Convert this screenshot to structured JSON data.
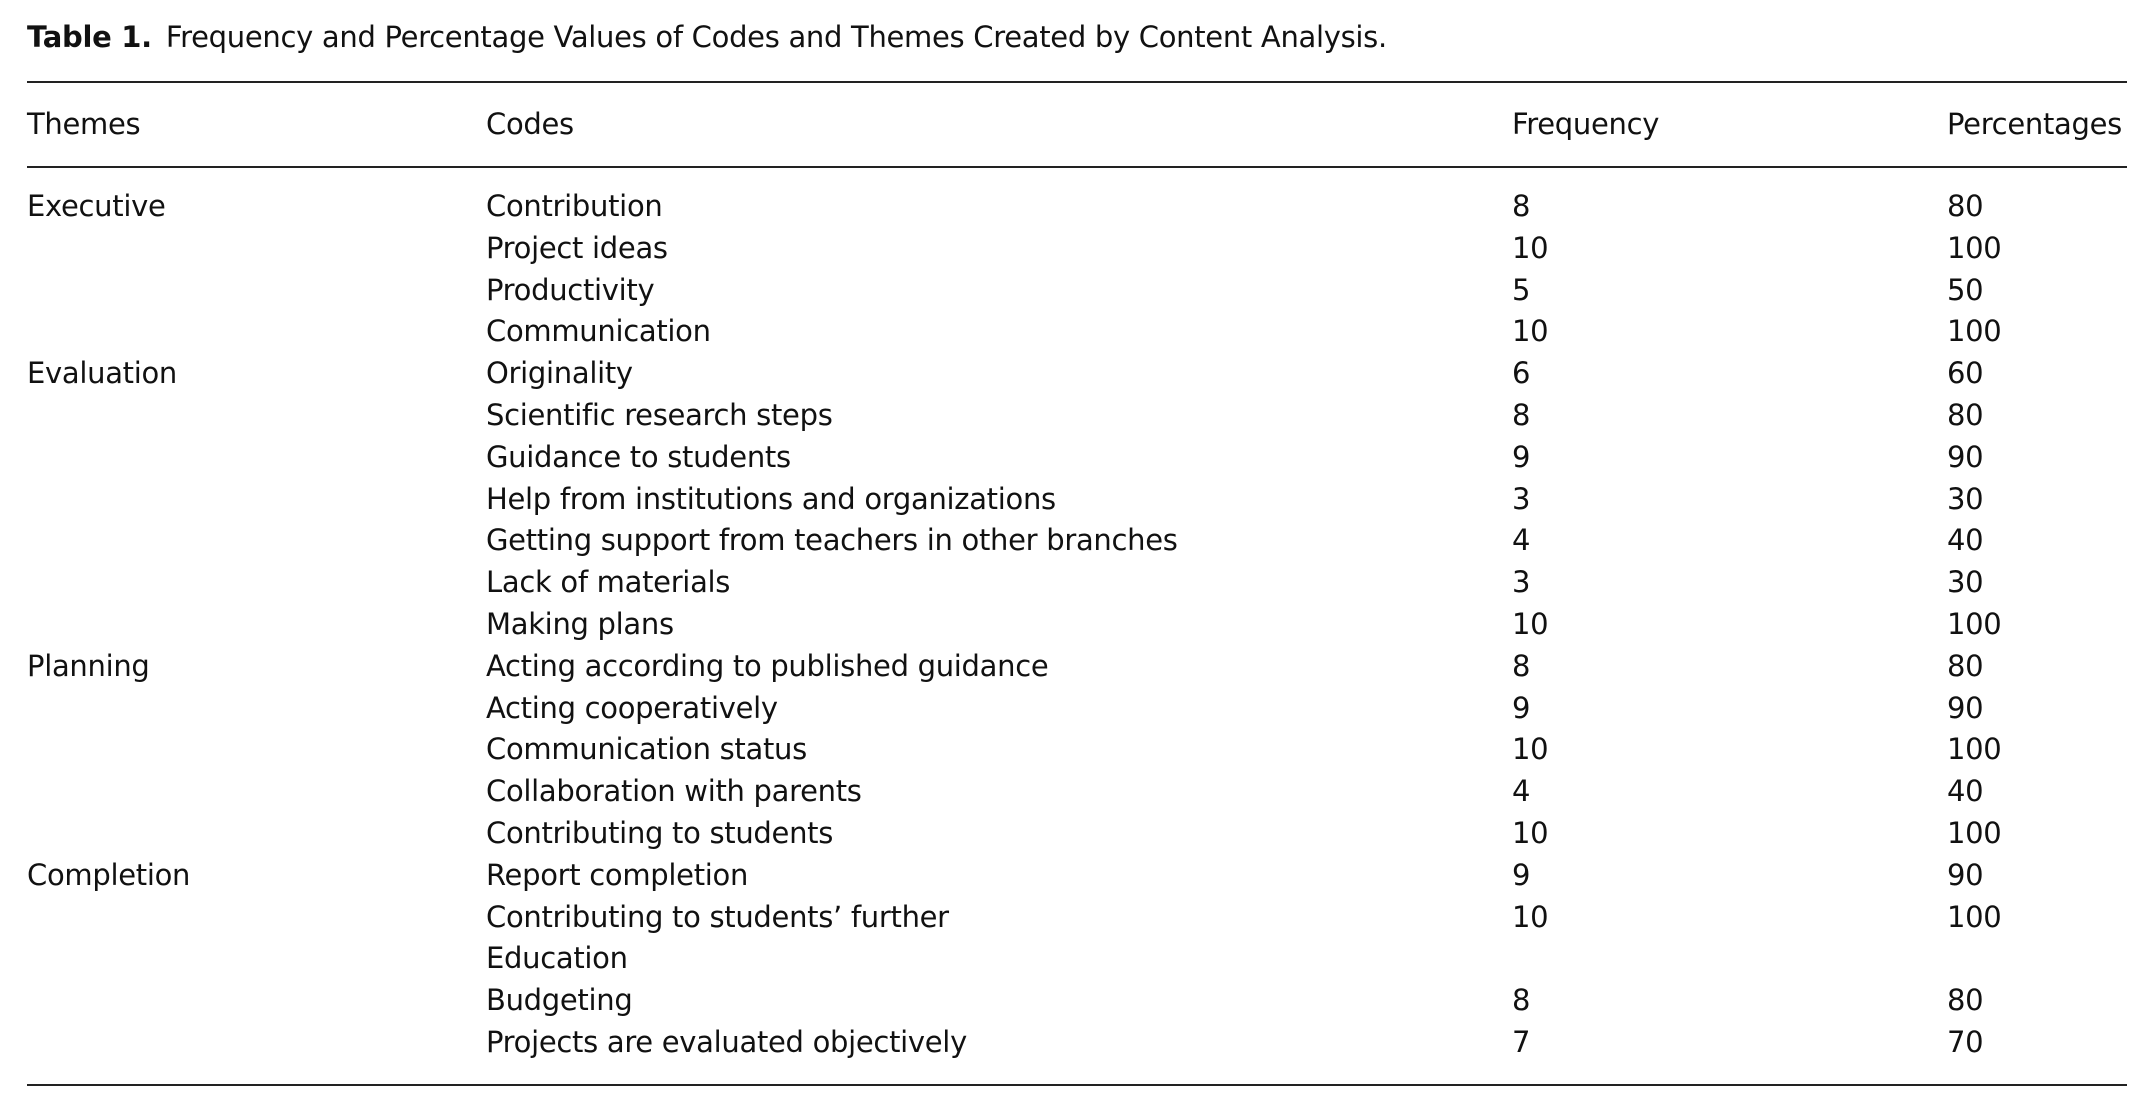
{
  "caption": {
    "label": "Table 1.",
    "text": "Frequency and Percentage Values of Codes and Themes Created by Content Analysis."
  },
  "headers": [
    "Themes",
    "Codes",
    "Frequency",
    "Percentages"
  ],
  "rows": [
    {
      "theme": "Executive",
      "code": "Contribution",
      "frequency": "8",
      "percentage": "80"
    },
    {
      "theme": "",
      "code": "Project ideas",
      "frequency": "10",
      "percentage": "100"
    },
    {
      "theme": "",
      "code": "Productivity",
      "frequency": "5",
      "percentage": "50"
    },
    {
      "theme": "",
      "code": "Communication",
      "frequency": "10",
      "percentage": "100"
    },
    {
      "theme": "Evaluation",
      "code": "Originality",
      "frequency": "6",
      "percentage": "60"
    },
    {
      "theme": "",
      "code": "Scientific research steps",
      "frequency": "8",
      "percentage": "80"
    },
    {
      "theme": "",
      "code": "Guidance to students",
      "frequency": "9",
      "percentage": "90"
    },
    {
      "theme": "",
      "code": "Help from institutions and organizations",
      "frequency": "3",
      "percentage": "30"
    },
    {
      "theme": "",
      "code": "Getting support from teachers in other branches",
      "frequency": "4",
      "percentage": "40"
    },
    {
      "theme": "",
      "code": "Lack of materials",
      "frequency": "3",
      "percentage": "30"
    },
    {
      "theme": "",
      "code": "Making plans",
      "frequency": "10",
      "percentage": "100"
    },
    {
      "theme": "Planning",
      "code": "Acting according to published guidance",
      "frequency": "8",
      "percentage": "80"
    },
    {
      "theme": "",
      "code": "Acting cooperatively",
      "frequency": "9",
      "percentage": "90"
    },
    {
      "theme": "",
      "code": "Communication status",
      "frequency": "10",
      "percentage": "100"
    },
    {
      "theme": "",
      "code": "Collaboration with parents",
      "frequency": "4",
      "percentage": "40"
    },
    {
      "theme": "",
      "code": "Contributing to students",
      "frequency": "10",
      "percentage": "100"
    },
    {
      "theme": "Completion",
      "code": "Report completion",
      "frequency": "9",
      "percentage": "90"
    },
    {
      "theme": "",
      "code": "Contributing to students’ further",
      "code_line2": "Education",
      "frequency": "10",
      "percentage": "100"
    },
    {
      "theme": "",
      "code": "Budgeting",
      "frequency": "8",
      "percentage": "80"
    },
    {
      "theme": "",
      "code": "Projects are evaluated objectively",
      "frequency": "7",
      "percentage": "70"
    }
  ]
}
